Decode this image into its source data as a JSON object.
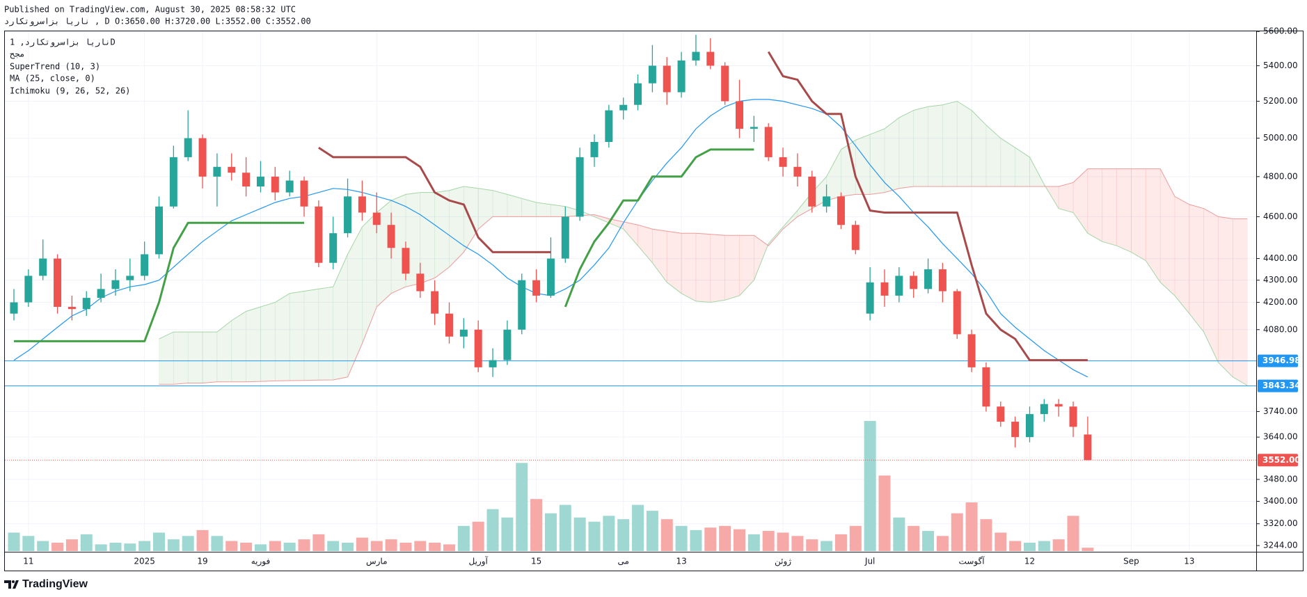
{
  "header": {
    "published": "Published on TradingView.com, August 30, 2025 08:58:32 UTC",
    "ohlc": "ناریا بزاسروتکارد , D O:3650.00 H:3720.00 L:3552.00 C:3552.00"
  },
  "chart_data": {
    "type": "candlestick",
    "legend": [
      "ناریا بزاسروتکارد, 1D",
      "مجح",
      "SuperTrend (10, 3)",
      "MA (25, close, 0)",
      "Ichimoku (9, 26, 52, 26)"
    ],
    "categories": [
      null,
      "11",
      null,
      null,
      null,
      null,
      null,
      null,
      null,
      "2025",
      null,
      null,
      null,
      "19",
      null,
      null,
      null,
      "فوریه",
      null,
      null,
      null,
      null,
      null,
      null,
      null,
      "مارس",
      null,
      null,
      null,
      null,
      null,
      null,
      "آوریل",
      null,
      null,
      null,
      "15",
      null,
      null,
      null,
      null,
      null,
      "می",
      null,
      null,
      null,
      "13",
      null,
      null,
      null,
      null,
      null,
      null,
      "ژوئن",
      null,
      null,
      null,
      null,
      null,
      "Jul",
      null,
      null,
      null,
      null,
      null,
      null,
      "آگوست",
      null,
      null,
      null,
      "12",
      null,
      null,
      null,
      null,
      null,
      null,
      "Sep",
      null,
      null,
      null,
      "13",
      null,
      null,
      null,
      null
    ],
    "open": [
      4150,
      4200,
      4320,
      4400,
      4180,
      4170,
      4220,
      4260,
      4300,
      4320,
      4420,
      4650,
      4900,
      5000,
      4800,
      4850,
      4820,
      4750,
      4800,
      4720,
      4780,
      4650,
      4380,
      4520,
      4700,
      4620,
      4560,
      4450,
      4330,
      4250,
      4150,
      4050,
      4080,
      3920,
      3950,
      4080,
      4300,
      4230,
      4400,
      4600,
      4900,
      4980,
      5150,
      5180,
      5300,
      5400,
      5250,
      5430,
      5480,
      5400,
      5200,
      5050,
      5060,
      4900,
      4850,
      4800,
      4650,
      4700,
      4560,
      4150,
      4290,
      4230,
      4320,
      4260,
      4350,
      4250,
      4060,
      3920,
      3760,
      3700,
      3640,
      3730,
      3770,
      3760,
      3650,
      null,
      null,
      null,
      null,
      null,
      null,
      null,
      null,
      null,
      null,
      null
    ],
    "high": [
      4260,
      4350,
      4490,
      4420,
      4230,
      4250,
      4330,
      4350,
      4400,
      4480,
      4700,
      4960,
      5150,
      5020,
      4920,
      4920,
      4900,
      4880,
      4850,
      4830,
      4800,
      4680,
      4600,
      4790,
      4780,
      4720,
      4620,
      4480,
      4380,
      4300,
      4200,
      4130,
      4120,
      4000,
      4120,
      4330,
      4350,
      4500,
      4650,
      4950,
      5020,
      5180,
      5220,
      5350,
      5520,
      5450,
      5480,
      5580,
      5560,
      5420,
      5320,
      5120,
      5080,
      4950,
      4920,
      4830,
      4760,
      4720,
      4580,
      4360,
      4350,
      4360,
      4340,
      4400,
      4380,
      4260,
      4080,
      3940,
      3780,
      3720,
      3760,
      3790,
      3790,
      3780,
      3720,
      null,
      null,
      null,
      null,
      null,
      null,
      null,
      null,
      null,
      null,
      null
    ],
    "low": [
      4120,
      4180,
      4300,
      4150,
      4120,
      4140,
      4200,
      4230,
      4250,
      4300,
      4400,
      4640,
      4880,
      4740,
      4650,
      4780,
      4700,
      4720,
      4680,
      4700,
      4600,
      4360,
      4350,
      4500,
      4580,
      4520,
      4400,
      4300,
      4220,
      4100,
      4020,
      4000,
      3900,
      3880,
      3930,
      4060,
      4200,
      4220,
      4380,
      4580,
      4850,
      4950,
      5100,
      5150,
      5250,
      5180,
      5220,
      5400,
      5380,
      5180,
      5000,
      4980,
      4880,
      4800,
      4750,
      4620,
      4620,
      4540,
      4420,
      4120,
      4180,
      4200,
      4220,
      4240,
      4200,
      4040,
      3900,
      3740,
      3680,
      3600,
      3620,
      3700,
      3720,
      3640,
      3552,
      null,
      null,
      null,
      null,
      null,
      null,
      null,
      null,
      null,
      null,
      null
    ],
    "close": [
      4200,
      4320,
      4400,
      4180,
      4170,
      4220,
      4260,
      4300,
      4320,
      4420,
      4650,
      4900,
      5000,
      4800,
      4850,
      4820,
      4750,
      4800,
      4720,
      4780,
      4650,
      4380,
      4520,
      4700,
      4620,
      4560,
      4450,
      4330,
      4250,
      4150,
      4050,
      4080,
      3920,
      3950,
      4080,
      4300,
      4230,
      4400,
      4600,
      4900,
      4980,
      5150,
      5180,
      5300,
      5400,
      5250,
      5430,
      5480,
      5400,
      5200,
      5050,
      5060,
      4900,
      4850,
      4800,
      4650,
      4700,
      4560,
      4440,
      4290,
      4230,
      4320,
      4260,
      4350,
      4250,
      4060,
      3920,
      3760,
      3700,
      3640,
      3730,
      3770,
      3760,
      3680,
      3552,
      null,
      null,
      null,
      null,
      null,
      null,
      null,
      null,
      null,
      null,
      null
    ],
    "volume": [
      22,
      18,
      12,
      10,
      14,
      20,
      8,
      10,
      9,
      12,
      22,
      14,
      18,
      25,
      18,
      12,
      10,
      8,
      12,
      10,
      14,
      20,
      12,
      10,
      16,
      12,
      14,
      10,
      12,
      10,
      8,
      30,
      35,
      50,
      40,
      105,
      62,
      45,
      55,
      40,
      35,
      42,
      38,
      55,
      48,
      38,
      30,
      25,
      28,
      30,
      26,
      20,
      24,
      22,
      18,
      14,
      12,
      20,
      30,
      155,
      90,
      40,
      30,
      24,
      18,
      45,
      58,
      38,
      22,
      12,
      10,
      12,
      14,
      42,
      4,
      null,
      null,
      null,
      null,
      null,
      null,
      null,
      null,
      null,
      null,
      null
    ],
    "up_color": "#26a69a",
    "down_color": "#ef5350",
    "volume_up_color": "#9fd8d2",
    "volume_down_color": "#f7a9a7",
    "ma": {
      "color": "#2196f3",
      "values": [
        3950,
        3990,
        4040,
        4090,
        4140,
        4170,
        4220,
        4250,
        4270,
        4280,
        4300,
        4360,
        4420,
        4480,
        4530,
        4580,
        4610,
        4640,
        4670,
        4690,
        4700,
        4720,
        4740,
        4735,
        4720,
        4700,
        4680,
        4650,
        4610,
        4560,
        4510,
        4460,
        4420,
        4370,
        4310,
        4270,
        4240,
        4230,
        4260,
        4300,
        4370,
        4450,
        4570,
        4680,
        4780,
        4870,
        4950,
        5050,
        5120,
        5170,
        5200,
        5210,
        5210,
        5200,
        5180,
        5160,
        5130,
        5060,
        4960,
        4860,
        4770,
        4700,
        4620,
        4550,
        4470,
        4400,
        4330,
        4250,
        4150,
        4090,
        4040,
        3990,
        3950,
        3910,
        3880,
        null,
        null,
        null,
        null,
        null,
        null,
        null,
        null,
        null,
        null,
        null
      ]
    },
    "supertrend": {
      "up_color": "#43a047",
      "down_color": "#a84a4a",
      "up": [
        4030,
        4030,
        4030,
        4030,
        4030,
        4030,
        4030,
        4030,
        4030,
        4030,
        4200,
        4450,
        4570,
        4570,
        4570,
        4570,
        4570,
        4570,
        4570,
        4570,
        4570,
        null,
        null,
        null,
        null,
        null,
        null,
        null,
        null,
        null,
        null,
        null,
        null,
        null,
        null,
        null,
        null,
        null,
        4180,
        4350,
        4480,
        4570,
        4680,
        4680,
        4800,
        4800,
        4800,
        4900,
        4940,
        4940,
        4940,
        4940,
        null,
        null,
        null,
        null,
        null,
        null,
        null,
        null,
        null,
        null,
        null,
        null,
        null,
        null,
        null,
        null,
        null,
        null,
        null,
        null,
        null,
        null,
        null,
        null,
        null,
        null,
        null,
        null,
        null,
        null,
        null,
        null,
        null,
        null
      ],
      "down": [
        null,
        null,
        null,
        null,
        null,
        null,
        null,
        null,
        null,
        null,
        null,
        null,
        null,
        null,
        null,
        null,
        null,
        null,
        null,
        null,
        null,
        4950,
        4900,
        4900,
        4900,
        4900,
        4900,
        4900,
        4850,
        4720,
        4680,
        4660,
        4500,
        4430,
        4430,
        4430,
        4430,
        4430,
        null,
        null,
        null,
        null,
        null,
        null,
        null,
        null,
        null,
        null,
        null,
        null,
        null,
        null,
        5480,
        5340,
        5320,
        5200,
        5130,
        5130,
        4800,
        4630,
        4620,
        4620,
        4620,
        4620,
        4620,
        4620,
        4370,
        4150,
        4080,
        4040,
        3950,
        3950,
        3950,
        3950,
        3950,
        null,
        null,
        null,
        null,
        null,
        null,
        null,
        null,
        null,
        null,
        null
      ]
    },
    "ichimoku": {
      "span_a_color": "#a5d6a7",
      "span_b_color": "#ef9a9a",
      "bull_fill": "rgba(67,160,71,0.09)",
      "bear_fill": "rgba(244,67,54,0.11)",
      "span_a": [
        null,
        null,
        null,
        null,
        null,
        null,
        null,
        null,
        null,
        null,
        4040,
        4070,
        4070,
        4070,
        4070,
        4120,
        4160,
        4180,
        4200,
        4240,
        4250,
        4260,
        4270,
        4420,
        4550,
        4620,
        4680,
        4710,
        4720,
        4720,
        4730,
        4750,
        4740,
        4730,
        4710,
        4690,
        4670,
        4660,
        4650,
        4630,
        4600,
        4570,
        4540,
        4460,
        4380,
        4290,
        4240,
        4205,
        4200,
        4210,
        4230,
        4300,
        4470,
        4550,
        4630,
        4720,
        4800,
        4940,
        4990,
        5020,
        5050,
        5110,
        5150,
        5170,
        5180,
        5200,
        5150,
        5070,
        5000,
        4950,
        4900,
        4760,
        4640,
        4620,
        4520,
        4480,
        4460,
        4430,
        4390,
        4290,
        4230,
        4150,
        4070,
        3940,
        3880,
        3845
      ],
      "span_b": [
        null,
        null,
        null,
        null,
        null,
        null,
        null,
        null,
        null,
        null,
        3850,
        3850,
        3855,
        3855,
        3860,
        3860,
        3860,
        3862,
        3864,
        3865,
        3866,
        3867,
        3868,
        3880,
        4020,
        4180,
        4240,
        4270,
        4285,
        4310,
        4360,
        4430,
        4540,
        4600,
        4600,
        4600,
        4600,
        4600,
        4600,
        4605,
        4610,
        4590,
        4575,
        4560,
        4540,
        4530,
        4520,
        4520,
        4515,
        4510,
        4510,
        4510,
        4460,
        4540,
        4600,
        4640,
        4680,
        4700,
        4710,
        4710,
        4720,
        4740,
        4750,
        4750,
        4750,
        4750,
        4750,
        4750,
        4750,
        4750,
        4750,
        4750,
        4750,
        4770,
        4840,
        4840,
        4840,
        4840,
        4840,
        4840,
        4700,
        4660,
        4640,
        4600,
        4590,
        4590
      ]
    },
    "price_lines": [
      {
        "value": 3946.98,
        "color": "#2196f3",
        "dashed": false
      },
      {
        "value": 3843.34,
        "color": "#2196f3",
        "dashed": false
      },
      {
        "value": 3552,
        "label": "3552.00",
        "color": "#ef5350",
        "dashed": true
      }
    ],
    "ylim": [
      3225,
      5605
    ],
    "log_scale": true,
    "grid": true,
    "yticks": [
      {
        "value": 5600,
        "label": "5600.00"
      },
      {
        "value": 5400,
        "label": "5400.00"
      },
      {
        "value": 5200,
        "label": "5200.00"
      },
      {
        "value": 5000,
        "label": "5000.00"
      },
      {
        "value": 4800,
        "label": "4800.00"
      },
      {
        "value": 4600,
        "label": "4600.00"
      },
      {
        "value": 4400,
        "label": "4400.00"
      },
      {
        "value": 4300,
        "label": "4300.00"
      },
      {
        "value": 4200,
        "label": "4200.00"
      },
      {
        "value": 4080,
        "label": "4080.00"
      },
      {
        "value": 3740,
        "label": "3740.00"
      },
      {
        "value": 3640,
        "label": "3640.00"
      },
      {
        "value": 3480,
        "label": "3480.00"
      },
      {
        "value": 3400,
        "label": "3400.00"
      },
      {
        "value": 3320,
        "label": "3320.00"
      },
      {
        "value": 3244,
        "label": "3244.00"
      }
    ]
  },
  "footer": {
    "brand": "TradingView"
  }
}
